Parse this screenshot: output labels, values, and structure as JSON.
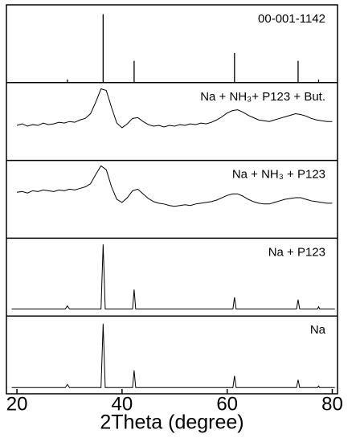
{
  "chart_data": {
    "type": "line",
    "x_label": "2Theta (degree)",
    "xlim": [
      18,
      81
    ],
    "xticks": [
      20,
      40,
      60,
      80
    ],
    "ylim": [
      0,
      100
    ],
    "color": "#000000",
    "series": [
      {
        "name": "00-001-1142",
        "type": "stick",
        "x": [
          29.6,
          36.4,
          42.3,
          61.4,
          73.5,
          77.4
        ],
        "values": [
          4,
          88,
          28,
          38,
          28,
          4
        ]
      },
      {
        "name": "Na + NH₃+ P123 + But.",
        "type": "line",
        "x": [
          20,
          21,
          22,
          23,
          24,
          25,
          26,
          27,
          28,
          29,
          30,
          31,
          32,
          33,
          34,
          35,
          36,
          37,
          38,
          39,
          40,
          41,
          42,
          43,
          44,
          45,
          46,
          47,
          48,
          49,
          50,
          51,
          52,
          53,
          54,
          55,
          56,
          57,
          58,
          59,
          60,
          61,
          62,
          63,
          64,
          65,
          66,
          67,
          68,
          69,
          70,
          71,
          72,
          73,
          74,
          75,
          76,
          77,
          78,
          79,
          80
        ],
        "values": [
          45,
          47,
          44,
          46,
          45,
          48,
          46,
          47,
          49,
          48,
          50,
          49,
          52,
          54,
          60,
          75,
          92,
          90,
          68,
          48,
          42,
          47,
          54,
          55,
          50,
          46,
          44,
          45,
          43,
          45,
          44,
          46,
          45,
          47,
          46,
          48,
          47,
          49,
          52,
          56,
          61,
          64,
          65,
          62,
          58,
          55,
          52,
          51,
          50,
          52,
          54,
          56,
          58,
          60,
          59,
          57,
          54,
          52,
          51,
          50,
          50
        ]
      },
      {
        "name": "Na + NH₃ + P123",
        "type": "line",
        "x": [
          20,
          21,
          22,
          23,
          24,
          25,
          26,
          27,
          28,
          29,
          30,
          31,
          32,
          33,
          34,
          35,
          36,
          37,
          38,
          39,
          40,
          41,
          42,
          43,
          44,
          45,
          46,
          47,
          48,
          49,
          50,
          51,
          52,
          53,
          54,
          55,
          56,
          57,
          58,
          59,
          60,
          61,
          62,
          63,
          64,
          65,
          66,
          67,
          68,
          69,
          70,
          71,
          72,
          73,
          74,
          75,
          76,
          77,
          78,
          79,
          80
        ],
        "values": [
          59,
          60,
          58,
          61,
          60,
          62,
          61,
          60,
          62,
          61,
          63,
          62,
          64,
          66,
          70,
          82,
          93,
          88,
          66,
          50,
          46,
          52,
          61,
          63,
          57,
          51,
          47,
          45,
          44,
          42,
          41,
          42,
          43,
          42,
          44,
          45,
          46,
          47,
          49,
          52,
          55,
          57,
          57,
          54,
          50,
          47,
          45,
          44,
          44,
          46,
          48,
          50,
          51,
          52,
          52,
          50,
          48,
          47,
          46,
          45,
          45
        ]
      },
      {
        "name": "Na + P123",
        "type": "line",
        "x": [
          19,
          29.2,
          29.6,
          30.0,
          36.0,
          36.4,
          36.8,
          42.0,
          42.3,
          42.6,
          61.1,
          61.4,
          61.7,
          73.2,
          73.5,
          73.8,
          77.2,
          77.4,
          77.6,
          80.5
        ],
        "values": [
          9,
          9,
          13,
          9,
          9,
          92,
          9,
          9,
          34,
          9,
          9,
          24,
          9,
          9,
          21,
          9,
          9,
          12,
          9,
          9
        ]
      },
      {
        "name": "Na",
        "type": "line",
        "x": [
          19,
          29.2,
          29.6,
          30.0,
          36.0,
          36.4,
          36.8,
          42.0,
          42.3,
          42.6,
          61.1,
          61.4,
          61.7,
          73.2,
          73.5,
          73.8,
          77.2,
          77.4,
          77.6,
          80.5
        ],
        "values": [
          8,
          8,
          12,
          8,
          8,
          90,
          8,
          8,
          30,
          8,
          8,
          23,
          8,
          8,
          18,
          8,
          8,
          10,
          8,
          8
        ]
      }
    ]
  }
}
